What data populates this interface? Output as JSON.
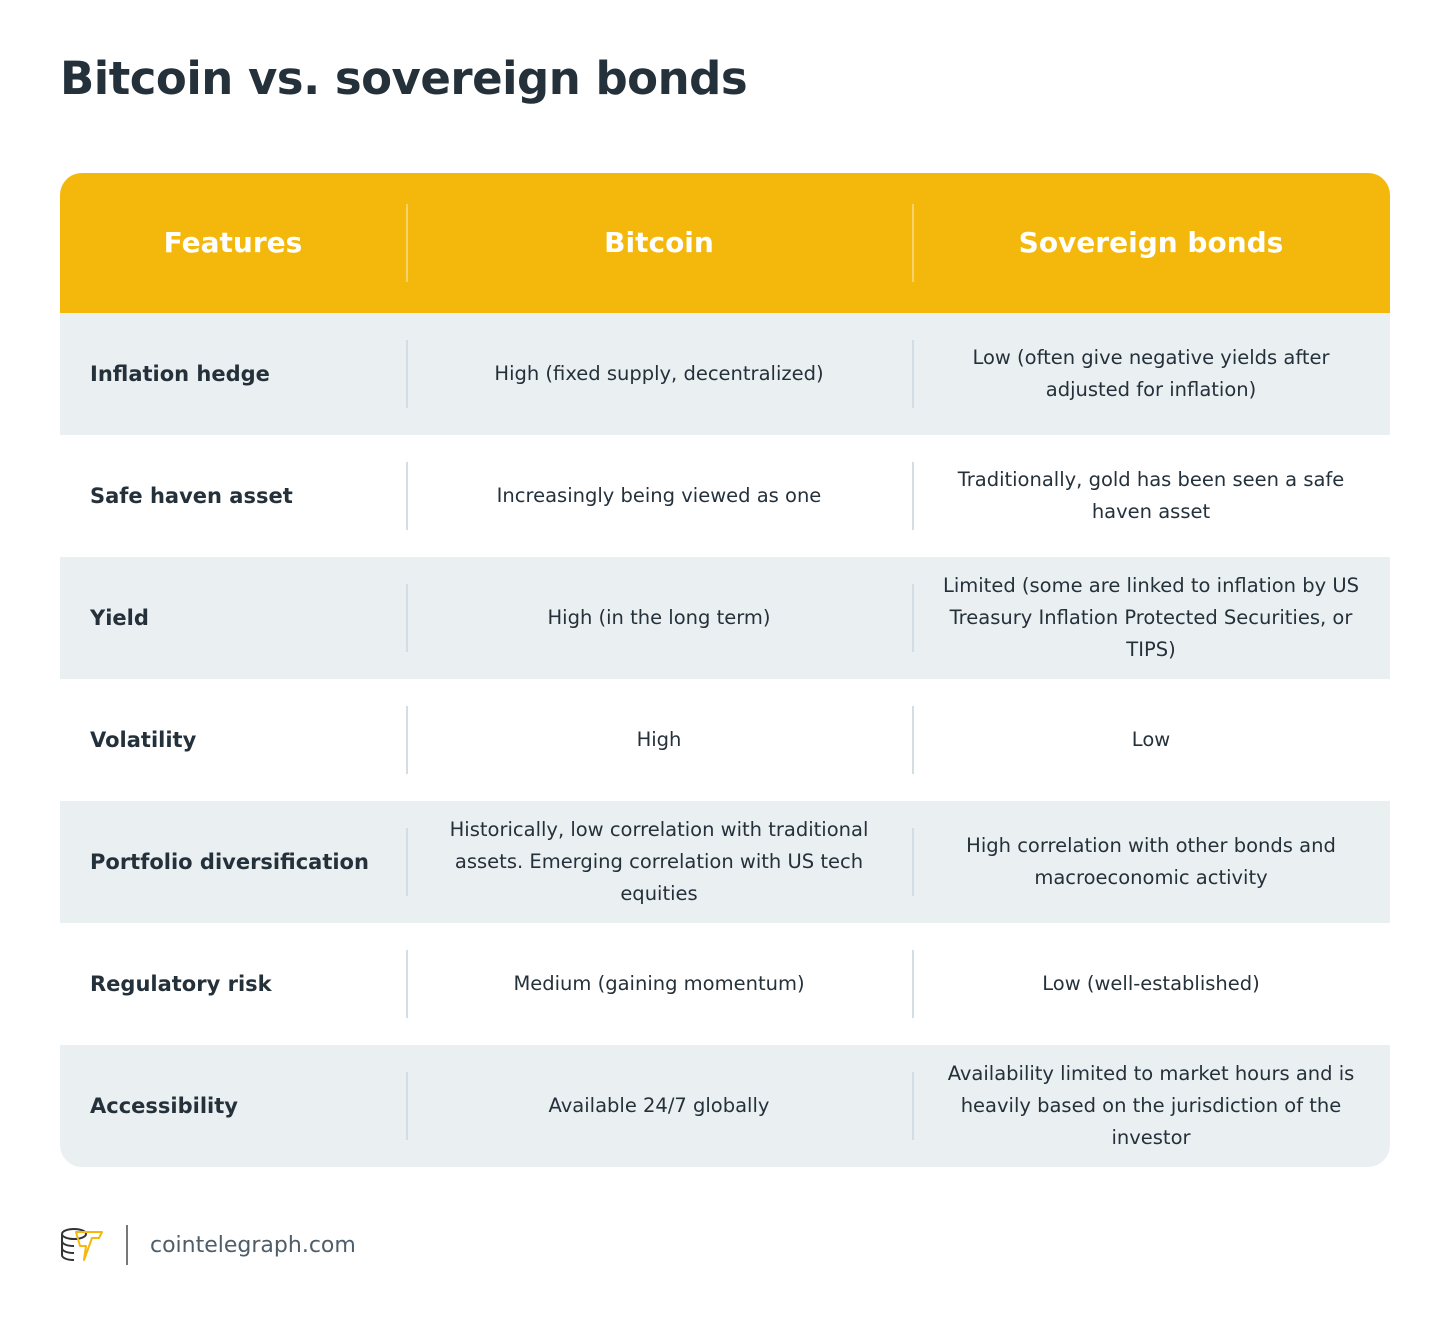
{
  "title": "Bitcoin vs. sovereign bonds",
  "colors": {
    "header": "#f4b80c",
    "row_alt": "#eaeff2",
    "text": "#25313a"
  },
  "table": {
    "headers": [
      "Features",
      "Bitcoin",
      "Sovereign bonds"
    ],
    "rows": [
      [
        "Inflation hedge",
        "High (fixed supply, decentralized)",
        "Low (often give negative yields after adjusted for inflation)"
      ],
      [
        "Safe haven asset",
        "Increasingly being viewed as one",
        "Traditionally, gold has been seen a safe haven asset"
      ],
      [
        "Yield",
        "High (in the long term)",
        "Limited (some are linked to inflation by US Treasury Inflation Protected Securities, or TIPS)"
      ],
      [
        "Volatility",
        "High",
        "Low"
      ],
      [
        "Portfolio diversification",
        "Historically, low correlation with traditional assets. Emerging correlation with US tech equities",
        "High correlation with other bonds and macroeconomic activity"
      ],
      [
        "Regulatory risk",
        "Medium (gaining momentum)",
        "Low (well-established)"
      ],
      [
        "Accessibility",
        "Available 24/7 globally",
        "Availability limited to market hours and is heavily based on the jurisdiction of the investor"
      ]
    ]
  },
  "footer": {
    "logo_icon": "cointelegraph-logo-icon",
    "site": "cointelegraph.com"
  }
}
